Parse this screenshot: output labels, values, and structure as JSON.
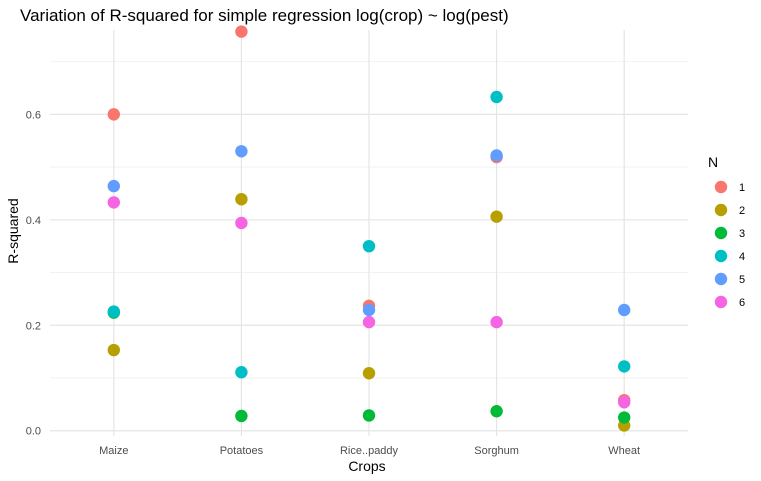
{
  "chart_data": {
    "type": "scatter",
    "title": "Variation of R-squared for simple regression log(crop) ~ log(pest)",
    "xlabel": "Crops",
    "ylabel": "R-squared",
    "categories": [
      "Maize",
      "Potatoes",
      "Rice..paddy",
      "Sorghum",
      "Wheat"
    ],
    "ylim": [
      -0.01,
      0.76
    ],
    "yticks": [
      0.0,
      0.2,
      0.4,
      0.6
    ],
    "ytick_labels": [
      "0.0",
      "0.2",
      "0.4",
      "0.6"
    ],
    "grid": true,
    "legend": {
      "title": "N",
      "position": "right"
    },
    "series": [
      {
        "name": "1",
        "color": "#F8766D",
        "values": [
          0.6,
          0.757,
          0.237,
          0.519,
          0.058
        ]
      },
      {
        "name": "2",
        "color": "#B79F00",
        "values": [
          0.153,
          0.439,
          0.109,
          0.406,
          0.01
        ]
      },
      {
        "name": "3",
        "color": "#00BA38",
        "values": [
          0.224,
          0.028,
          0.029,
          0.037,
          0.025
        ]
      },
      {
        "name": "4",
        "color": "#00BFC4",
        "values": [
          0.226,
          0.111,
          0.35,
          0.633,
          0.122
        ]
      },
      {
        "name": "5",
        "color": "#619CFF",
        "values": [
          0.464,
          0.53,
          0.229,
          0.522,
          0.229
        ]
      },
      {
        "name": "6",
        "color": "#F564E3",
        "values": [
          0.433,
          0.394,
          0.206,
          0.206,
          0.054
        ]
      }
    ]
  }
}
